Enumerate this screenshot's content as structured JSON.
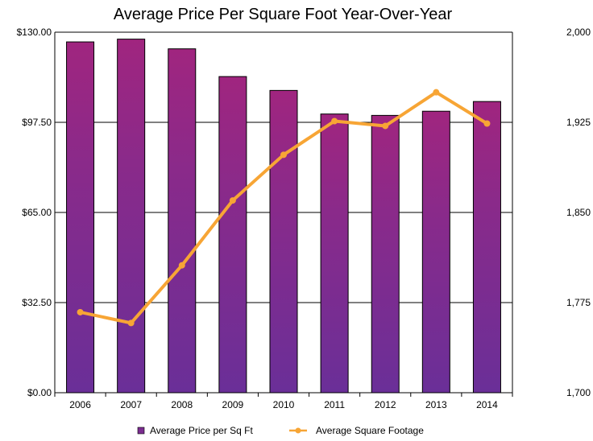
{
  "chart_data": {
    "type": "bar",
    "title": "Average Price Per Square Foot Year-Over-Year",
    "categories": [
      "2006",
      "2007",
      "2008",
      "2009",
      "2010",
      "2011",
      "2012",
      "2013",
      "2014"
    ],
    "series": [
      {
        "name": "Average Price per Sq Ft",
        "type": "bar",
        "axis": "left",
        "values": [
          126.5,
          127.5,
          124.0,
          114.0,
          109.0,
          100.5,
          100.0,
          101.5,
          105.0
        ],
        "color": "#7b2d90"
      },
      {
        "name": "Average Square Footage",
        "type": "line",
        "axis": "right",
        "values": [
          1767,
          1758,
          1806,
          1860,
          1898,
          1926,
          1922,
          1950,
          1924
        ],
        "color": "#f7a535"
      }
    ],
    "y_left": {
      "lim": [
        0,
        130
      ],
      "ticks": [
        "$0.00",
        "$32.50",
        "$65.00",
        "$97.50",
        "$130.00"
      ]
    },
    "y_right": {
      "lim": [
        1700,
        2000
      ],
      "ticks": [
        "1,700",
        "1,775",
        "1,850",
        "1,925",
        "2,000"
      ]
    },
    "grid": true,
    "legend": "bottom"
  }
}
